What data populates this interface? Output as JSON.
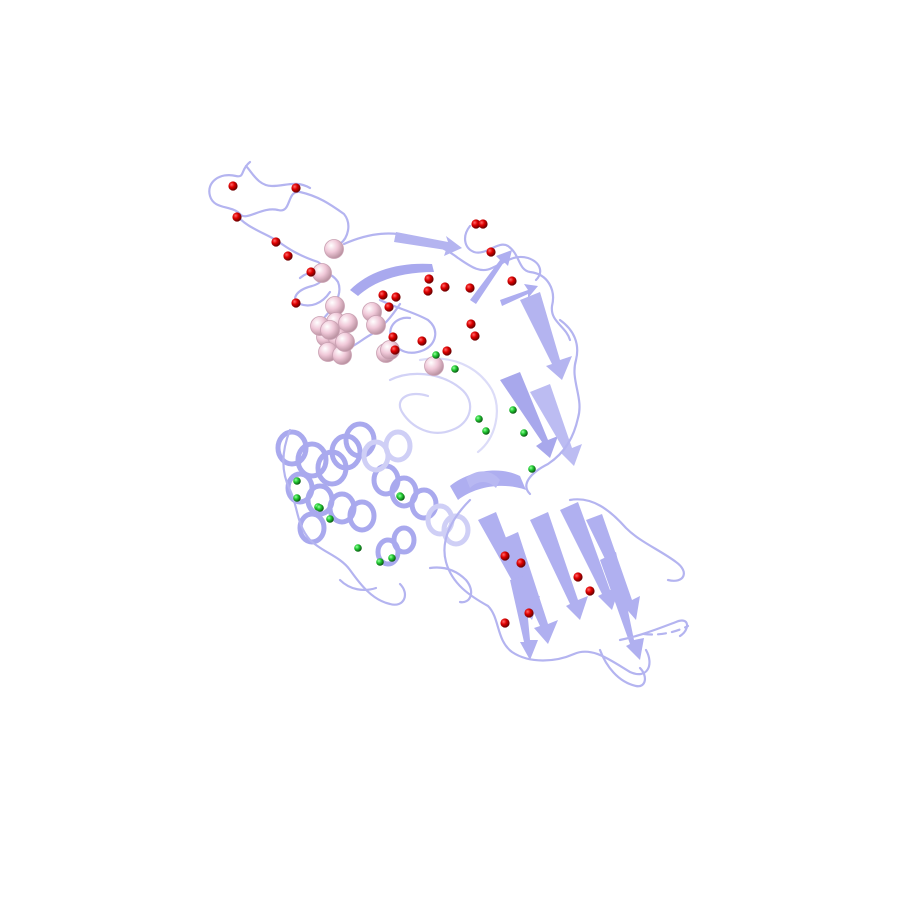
{
  "scene": {
    "kind": "protein-structure-cartoon",
    "background_color": "#ffffff",
    "ribbon_color": "#b4b4f0",
    "ribbon_color_faded": "#d6d6f6",
    "sphere_colors": {
      "small_red": "#e00000",
      "small_green": "#22cc33",
      "large_pink": "#f0c8d8"
    },
    "sphere_counts": {
      "small_red": 40,
      "small_green": 17,
      "large_pink": 17
    }
  }
}
